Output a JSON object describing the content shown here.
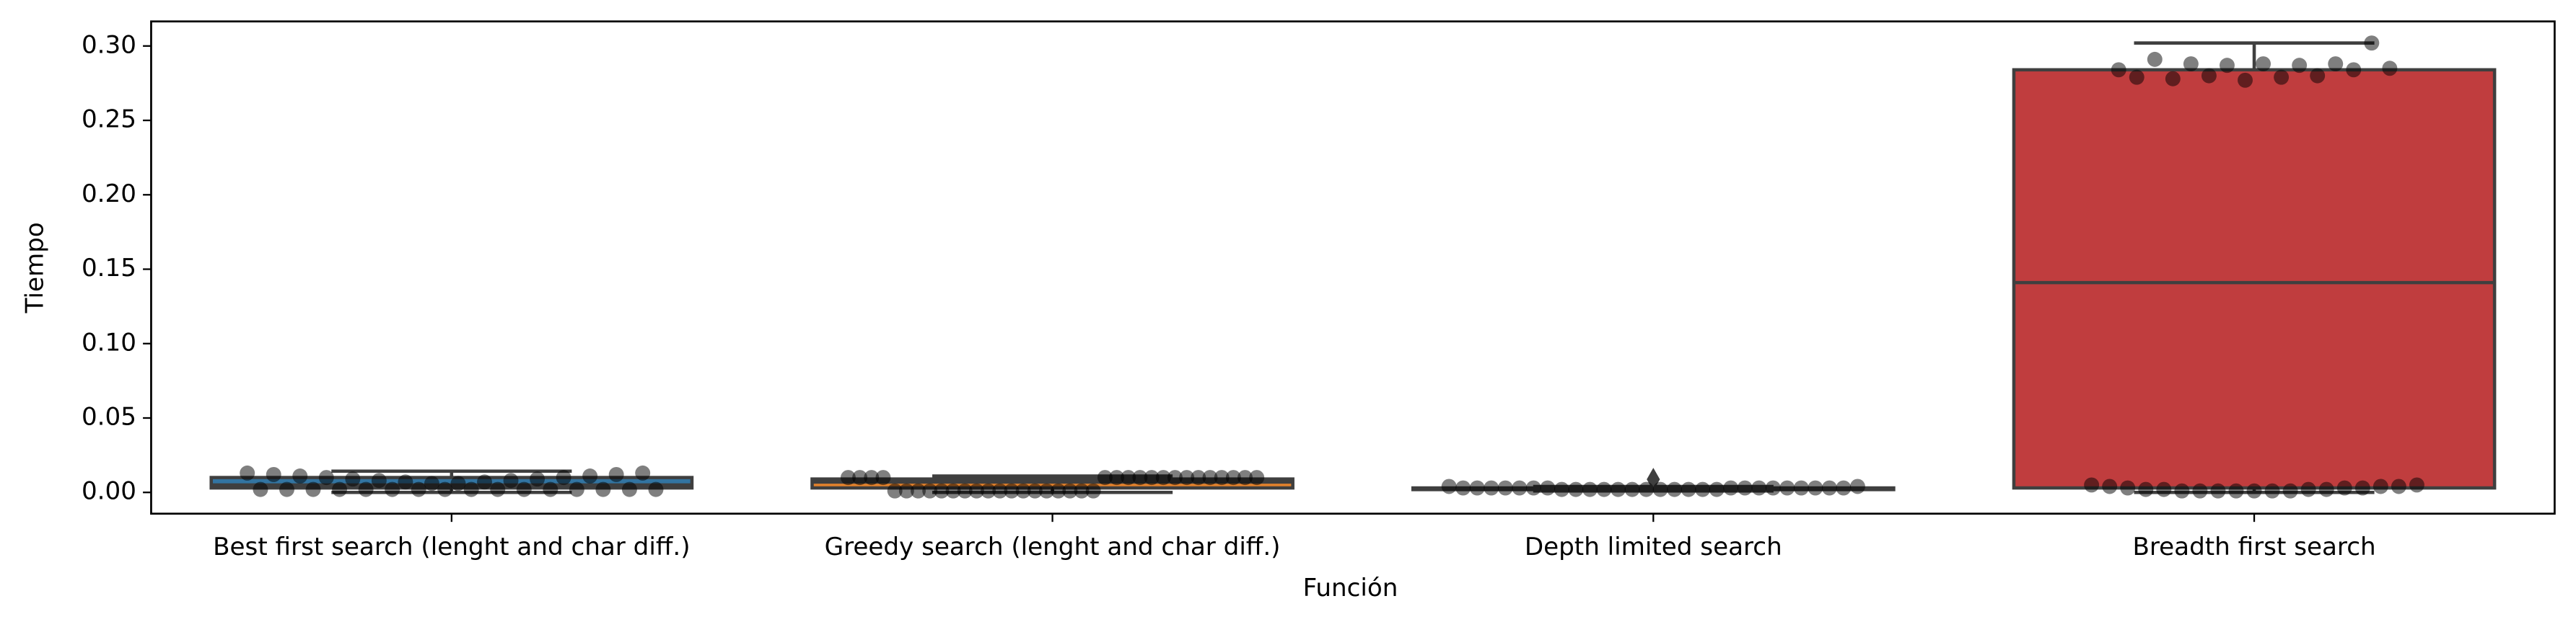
{
  "chart_data": {
    "type": "box",
    "xlabel": "Función",
    "ylabel": "Tiempo",
    "categories": [
      "Best first search (lenght and char diff.)",
      "Greedy search (lenght and char diff.)",
      "Depth limited search",
      "Breadth first search"
    ],
    "colors": [
      "#3274a1",
      "#e1812c",
      "#3a923a",
      "#c03d3e"
    ],
    "boxes": [
      {
        "low": 0.0,
        "q1": 0.003,
        "median": 0.005,
        "q3": 0.01,
        "high": 0.0143,
        "outliers": []
      },
      {
        "low": 0.0,
        "q1": 0.003,
        "median": 0.007,
        "q3": 0.009,
        "high": 0.011,
        "outliers": []
      },
      {
        "low": 0.001,
        "q1": 0.002,
        "median": 0.002,
        "q3": 0.003,
        "high": 0.004,
        "outliers": [
          0.0088
        ]
      },
      {
        "low": 0.0,
        "q1": 0.003,
        "median": 0.141,
        "q3": 0.284,
        "high": 0.302,
        "outliers": []
      }
    ],
    "points": [
      [
        0.013,
        0.002,
        0.012,
        0.002,
        0.011,
        0.002,
        0.01,
        0.002,
        0.009,
        0.002,
        0.008,
        0.002,
        0.007,
        0.002,
        0.006,
        0.002,
        0.006,
        0.002,
        0.007,
        0.002,
        0.008,
        0.002,
        0.009,
        0.002,
        0.01,
        0.002,
        0.011,
        0.002,
        0.012,
        0.002,
        0.013,
        0.002
      ],
      [
        0.01,
        0.01,
        0.01,
        0.01,
        0.001,
        0.001,
        0.001,
        0.001,
        0.001,
        0.001,
        0.001,
        0.001,
        0.001,
        0.001,
        0.001,
        0.001,
        0.001,
        0.001,
        0.001,
        0.001,
        0.001,
        0.001,
        0.01,
        0.01,
        0.01,
        0.01,
        0.01,
        0.01,
        0.01,
        0.01,
        0.01,
        0.01,
        0.01,
        0.01,
        0.01,
        0.01
      ],
      [
        0.004,
        0.003,
        0.003,
        0.003,
        0.003,
        0.003,
        0.003,
        0.003,
        0.002,
        0.002,
        0.002,
        0.002,
        0.002,
        0.002,
        0.002,
        0.002,
        0.002,
        0.002,
        0.002,
        0.002,
        0.003,
        0.003,
        0.003,
        0.003,
        0.003,
        0.003,
        0.003,
        0.003,
        0.003,
        0.004
      ],
      [
        0.284,
        0.279,
        0.291,
        0.278,
        0.288,
        0.28,
        0.287,
        0.277,
        0.288,
        0.279,
        0.287,
        0.28,
        0.288,
        0.284,
        0.302,
        0.285,
        0.005,
        0.004,
        0.003,
        0.002,
        0.002,
        0.001,
        0.001,
        0.001,
        0.001,
        0.001,
        0.001,
        0.001,
        0.002,
        0.002,
        0.003,
        0.003,
        0.004,
        0.004,
        0.005
      ]
    ],
    "ylim": [
      -0.0143,
      0.3165
    ],
    "yticks": [
      {
        "value": 0,
        "label": "0.00"
      },
      0.05,
      {
        "value": 0.1,
        "label": "0.10"
      },
      0.15,
      {
        "value": 0.2,
        "label": "0.20"
      },
      0.25,
      {
        "value": 0.3,
        "label": "0.30"
      }
    ]
  }
}
